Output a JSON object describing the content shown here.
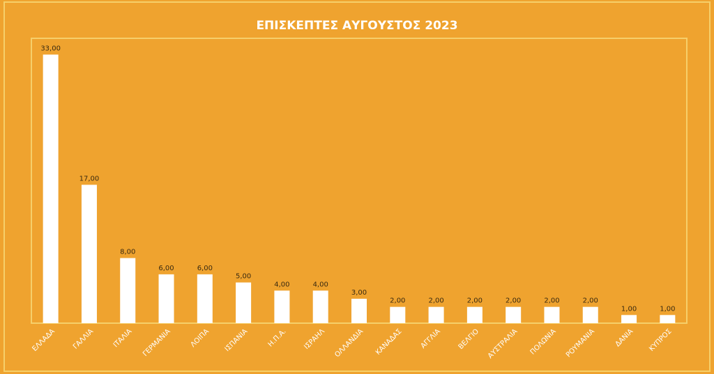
{
  "chart_data": {
    "type": "bar",
    "title": "ΕΠΙΣΚΕΠΤΕΣ ΑΥΓΟΥΣΤΟΣ 2023",
    "categories": [
      "ΕΛΛΑΔΑ",
      "ΓΑΛΛΙΑ",
      "ΙΤΑΛΙΑ",
      "ΓΕΡΜΑΝΙΑ",
      "ΛΟΙΠΑ",
      "ΙΣΠΑΝΙΑ",
      "Η.Π.Α.",
      "ΙΣΡΑΗΛ",
      "ΟΛΛΑΝΔΙΑ",
      "ΚΑΝΑΔΑΣ",
      "ΑΓΓΛΙΑ",
      "ΒΕΛΓΙΟ",
      "ΑΥΣΤΡΑΛΙΑ",
      "ΠΟΛΩΝΙΑ",
      "ΡΟΥΜΑΝΙΑ",
      "ΔΑΝΙΑ",
      "ΚΥΠΡΟΣ"
    ],
    "values": [
      33,
      17,
      8,
      6,
      6,
      5,
      4,
      4,
      3,
      2,
      2,
      2,
      2,
      2,
      2,
      1,
      1
    ],
    "value_labels": [
      "33,00",
      "17,00",
      "8,00",
      "6,00",
      "6,00",
      "5,00",
      "4,00",
      "4,00",
      "3,00",
      "2,00",
      "2,00",
      "2,00",
      "2,00",
      "2,00",
      "2,00",
      "1,00",
      "1,00"
    ],
    "color": "#ffffff",
    "ylim": [
      0,
      35
    ]
  }
}
